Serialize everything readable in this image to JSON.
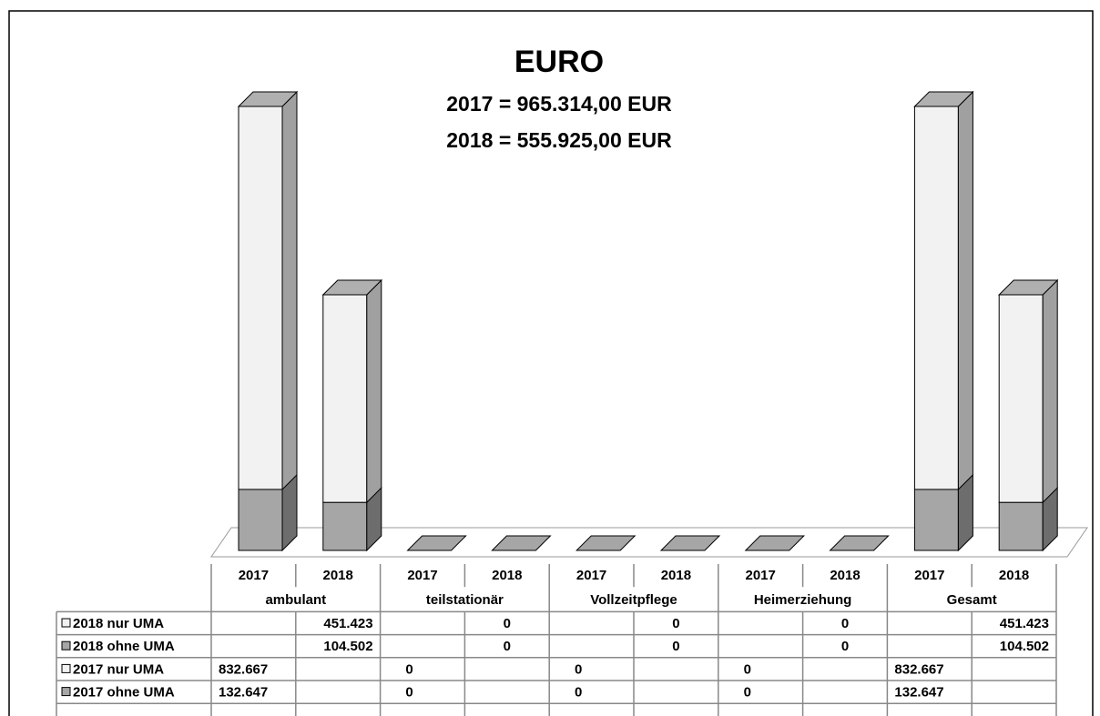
{
  "chart_data": {
    "type": "bar3d_stacked",
    "title": "EURO",
    "subtitle": [
      "2017 = 965.314,00 EUR",
      "2018 = 555.925,00 EUR"
    ],
    "categories": [
      "2017",
      "2018",
      "2017",
      "2018",
      "2017",
      "2018",
      "2017",
      "2018",
      "2017",
      "2018"
    ],
    "groups": [
      "ambulant",
      "teilstationär",
      "Vollzeitpflege",
      "Heimerziehung",
      "Gesamt"
    ],
    "series": [
      {
        "name": "2018 nur UMA",
        "color": "#f2f2f2",
        "values": [
          null,
          451423,
          null,
          0,
          null,
          0,
          null,
          0,
          null,
          451423
        ],
        "value_labels": [
          null,
          "451.423",
          null,
          "0",
          null,
          "0",
          null,
          "0",
          null,
          "451.423"
        ]
      },
      {
        "name": "2018 ohne UMA",
        "color": "#a6a6a6",
        "values": [
          null,
          104502,
          null,
          0,
          null,
          0,
          null,
          0,
          null,
          104502
        ],
        "value_labels": [
          null,
          "104.502",
          null,
          "0",
          null,
          "0",
          null,
          "0",
          null,
          "104.502"
        ]
      },
      {
        "name": "2017 nur UMA",
        "color": "#f2f2f2",
        "values": [
          832667,
          null,
          0,
          null,
          0,
          null,
          0,
          null,
          832667,
          null
        ],
        "value_labels": [
          "832.667",
          null,
          "0",
          null,
          "0",
          null,
          "0",
          null,
          "832.667",
          null
        ]
      },
      {
        "name": "2017 ohne UMA",
        "color": "#a6a6a6",
        "values": [
          132647,
          null,
          0,
          null,
          0,
          null,
          0,
          null,
          132647,
          null
        ],
        "value_labels": [
          "132.647",
          null,
          "0",
          null,
          "0",
          null,
          "0",
          null,
          "132.647",
          null
        ]
      }
    ]
  }
}
